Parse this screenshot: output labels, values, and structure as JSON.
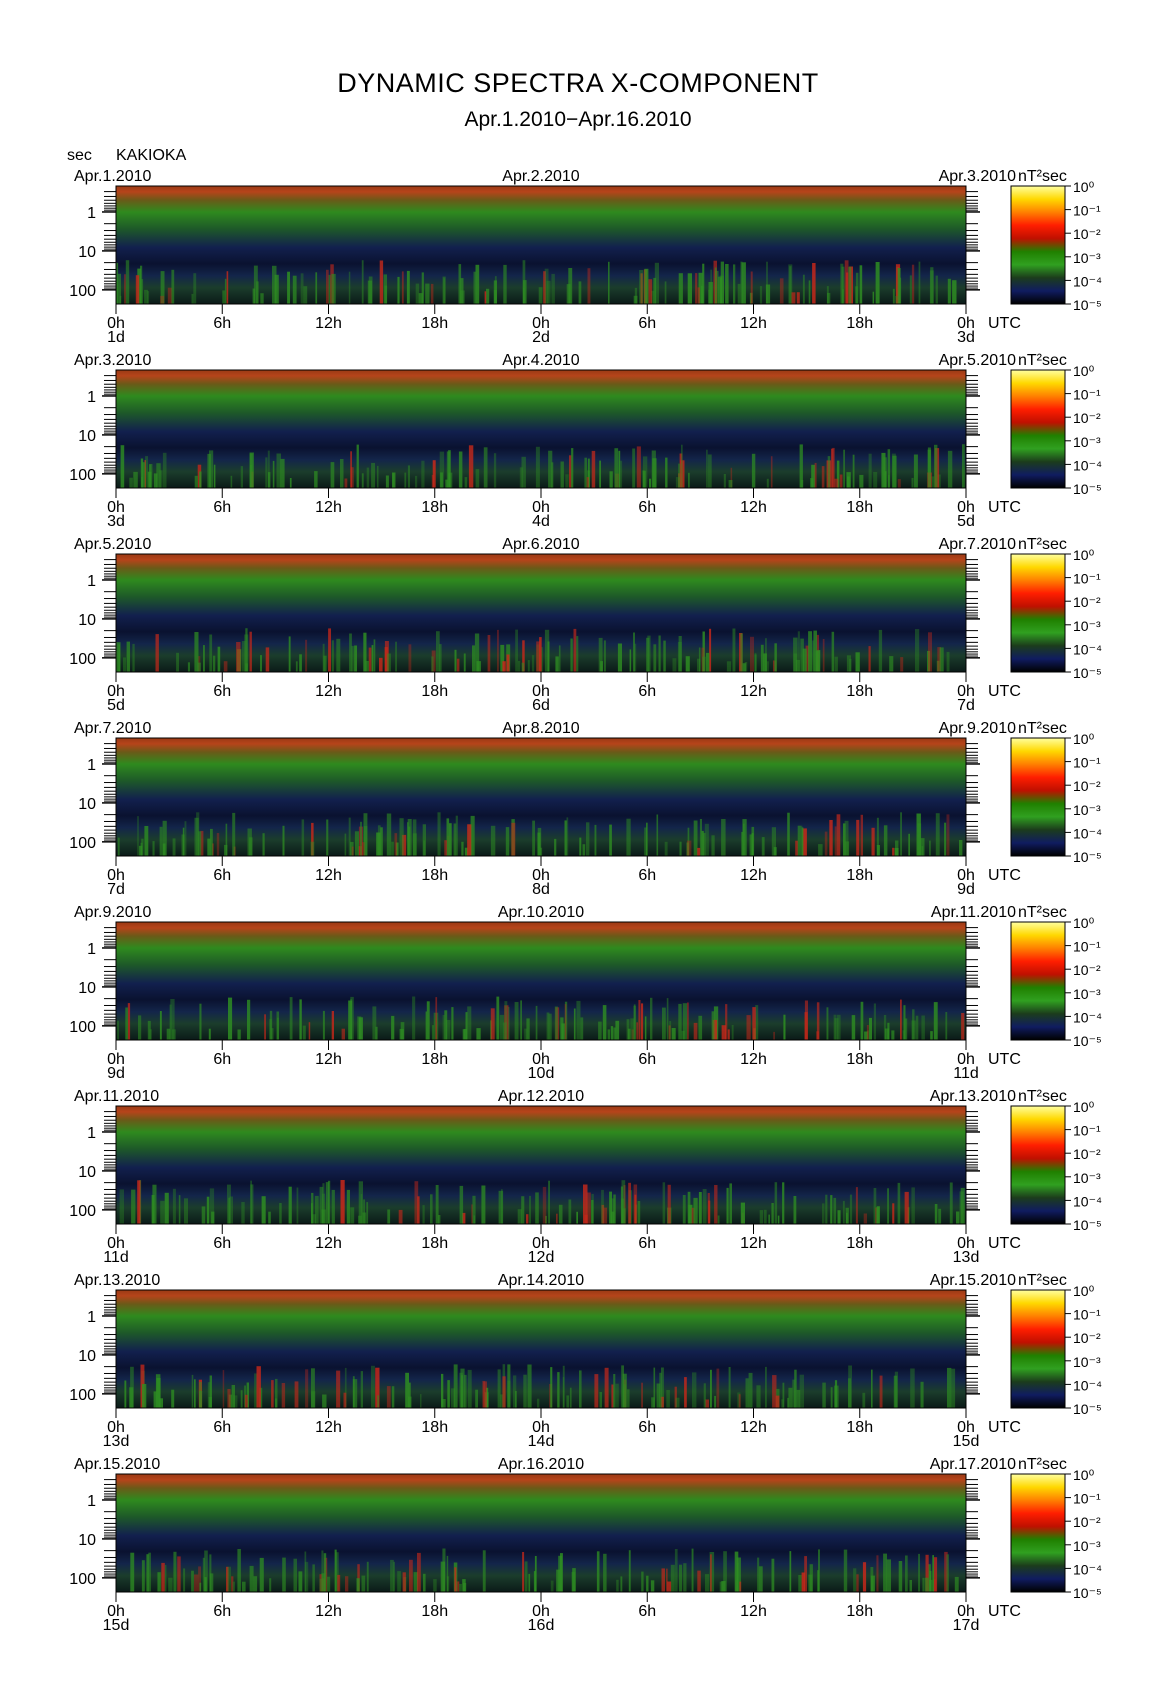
{
  "page": {
    "title": "DYNAMIC SPECTRA X-COMPONENT",
    "subtitle": "Apr.1.2010−Apr.16.2010",
    "y_unit": "sec",
    "station": "KAKIOKA"
  },
  "chart_data": {
    "type": "heatmap",
    "title": "DYNAMIC SPECTRA X-COMPONENT",
    "subtitle": "Apr.1.2010−Apr.16.2010",
    "station": "KAKIOKA",
    "ylabel": "sec",
    "y_scale": "log",
    "y_ticks": [
      "1",
      "10",
      "100"
    ],
    "x_ticks": [
      "0h",
      "6h",
      "12h",
      "18h",
      "0h",
      "6h",
      "12h",
      "18h",
      "0h"
    ],
    "x_unit": "UTC",
    "colorbar": {
      "unit": "nT²sec",
      "ticks": [
        "10⁰",
        "10⁻¹",
        "10⁻²",
        "10⁻³",
        "10⁻⁴",
        "10⁻⁵"
      ],
      "colors": [
        "#ffffa0",
        "#ffd800",
        "#ff8000",
        "#ff1e00",
        "#c01000",
        "#208000",
        "#30a020",
        "#1c3c1c",
        "#101c60",
        "#000000"
      ]
    },
    "panels": [
      {
        "date_left": "Apr.1.2010",
        "date_mid": "Apr.2.2010",
        "date_right": "Apr.3.2010",
        "day_labels": [
          "1d",
          "2d",
          "3d"
        ]
      },
      {
        "date_left": "Apr.3.2010",
        "date_mid": "Apr.4.2010",
        "date_right": "Apr.5.2010",
        "day_labels": [
          "3d",
          "4d",
          "5d"
        ]
      },
      {
        "date_left": "Apr.5.2010",
        "date_mid": "Apr.6.2010",
        "date_right": "Apr.7.2010",
        "day_labels": [
          "5d",
          "6d",
          "7d"
        ]
      },
      {
        "date_left": "Apr.7.2010",
        "date_mid": "Apr.8.2010",
        "date_right": "Apr.9.2010",
        "day_labels": [
          "7d",
          "8d",
          "9d"
        ]
      },
      {
        "date_left": "Apr.9.2010",
        "date_mid": "Apr.10.2010",
        "date_right": "Apr.11.2010",
        "day_labels": [
          "9d",
          "10d",
          "11d"
        ]
      },
      {
        "date_left": "Apr.11.2010",
        "date_mid": "Apr.12.2010",
        "date_right": "Apr.13.2010",
        "day_labels": [
          "11d",
          "12d",
          "13d"
        ]
      },
      {
        "date_left": "Apr.13.2010",
        "date_mid": "Apr.14.2010",
        "date_right": "Apr.15.2010",
        "day_labels": [
          "13d",
          "14d",
          "15d"
        ]
      },
      {
        "date_left": "Apr.15.2010",
        "date_mid": "Apr.16.2010",
        "date_right": "Apr.17.2010",
        "day_labels": [
          "15d",
          "16d",
          "17d"
        ]
      }
    ]
  }
}
